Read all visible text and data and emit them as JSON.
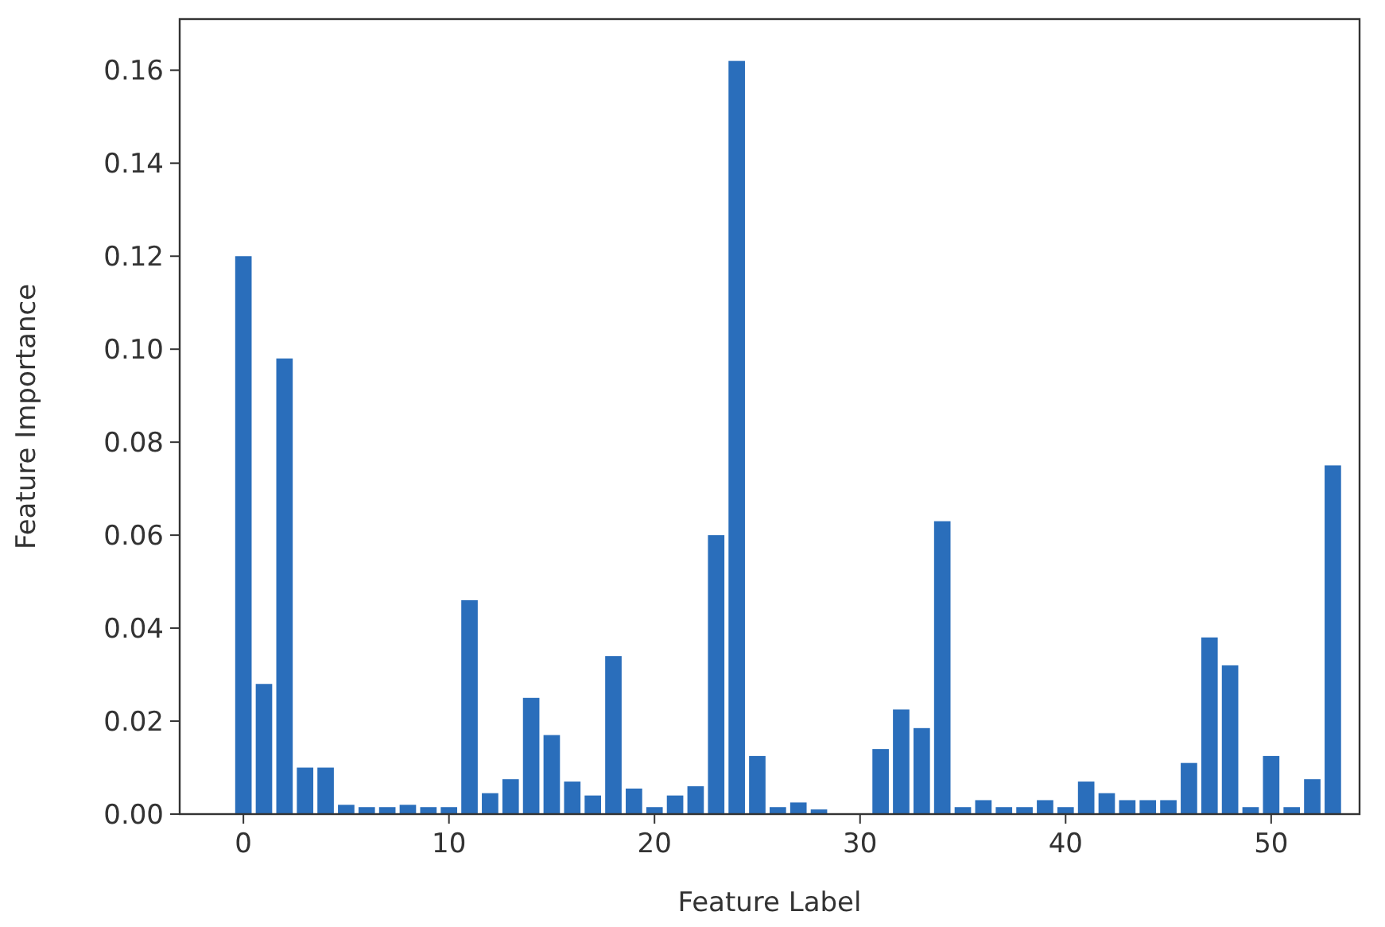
{
  "chart_data": {
    "type": "bar",
    "xlabel": "Feature Label",
    "ylabel": "Feature Importance",
    "x": [
      0,
      1,
      2,
      3,
      4,
      5,
      6,
      7,
      8,
      9,
      10,
      11,
      12,
      13,
      14,
      15,
      16,
      17,
      18,
      19,
      20,
      21,
      22,
      23,
      24,
      25,
      26,
      27,
      28,
      29,
      30,
      31,
      32,
      33,
      34,
      35,
      36,
      37,
      38,
      39,
      40,
      41,
      42,
      43,
      44,
      45,
      46,
      47,
      48,
      49,
      50,
      51,
      52,
      53
    ],
    "values": [
      0.12,
      0.028,
      0.098,
      0.01,
      0.01,
      0.002,
      0.0015,
      0.0015,
      0.002,
      0.0015,
      0.0015,
      0.046,
      0.0045,
      0.0075,
      0.025,
      0.017,
      0.007,
      0.004,
      0.034,
      0.0055,
      0.0015,
      0.004,
      0.006,
      0.06,
      0.162,
      0.0125,
      0.0015,
      0.0025,
      0.001,
      0,
      0,
      0.014,
      0.0225,
      0.0185,
      0.063,
      0.0015,
      0.003,
      0.0015,
      0.0015,
      0.003,
      0.0015,
      0.007,
      0.0045,
      0.003,
      0.003,
      0.003,
      0.011,
      0.038,
      0.032,
      0.0015,
      0.0125,
      0.0015,
      0.0075,
      0.075
    ],
    "color": "#2a6ebb",
    "xlim": [
      -3.1,
      54.3
    ],
    "xticks": [
      0,
      10,
      20,
      30,
      40,
      50
    ],
    "ylim": [
      0,
      0.171
    ],
    "yticks": [
      {
        "value": 0,
        "label": "0.00"
      },
      {
        "value": 0.02,
        "label": "0.02"
      },
      {
        "value": 0.04,
        "label": "0.04"
      },
      {
        "value": 0.06,
        "label": "0.06"
      },
      {
        "value": 0.08,
        "label": "0.08"
      },
      {
        "value": 0.1,
        "label": "0.10"
      },
      {
        "value": 0.12,
        "label": "0.12"
      },
      {
        "value": 0.14,
        "label": "0.14"
      },
      {
        "value": 0.16,
        "label": "0.16"
      }
    ],
    "grid": false
  }
}
